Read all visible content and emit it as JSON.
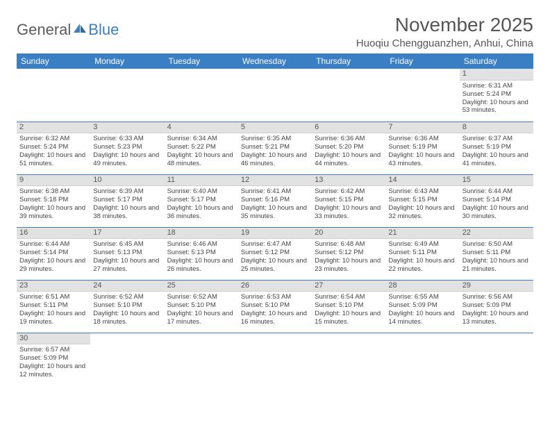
{
  "logo": {
    "general": "General",
    "blue": "Blue"
  },
  "header": {
    "month_title": "November 2025",
    "location": "Huoqiu Chengguanzhen, Anhui, China"
  },
  "colors": {
    "brand_blue": "#3a7fc4",
    "header_text": "#ffffff",
    "daynum_bg": "#e2e2e2",
    "body_text": "#444444",
    "title_text": "#555555"
  },
  "calendar": {
    "day_headers": [
      "Sunday",
      "Monday",
      "Tuesday",
      "Wednesday",
      "Thursday",
      "Friday",
      "Saturday"
    ],
    "weeks": [
      [
        {
          "blank": true
        },
        {
          "blank": true
        },
        {
          "blank": true
        },
        {
          "blank": true
        },
        {
          "blank": true
        },
        {
          "blank": true
        },
        {
          "num": "1",
          "sunrise": "Sunrise: 6:31 AM",
          "sunset": "Sunset: 5:24 PM",
          "daylight": "Daylight: 10 hours and 53 minutes."
        }
      ],
      [
        {
          "num": "2",
          "sunrise": "Sunrise: 6:32 AM",
          "sunset": "Sunset: 5:24 PM",
          "daylight": "Daylight: 10 hours and 51 minutes."
        },
        {
          "num": "3",
          "sunrise": "Sunrise: 6:33 AM",
          "sunset": "Sunset: 5:23 PM",
          "daylight": "Daylight: 10 hours and 49 minutes."
        },
        {
          "num": "4",
          "sunrise": "Sunrise: 6:34 AM",
          "sunset": "Sunset: 5:22 PM",
          "daylight": "Daylight: 10 hours and 48 minutes."
        },
        {
          "num": "5",
          "sunrise": "Sunrise: 6:35 AM",
          "sunset": "Sunset: 5:21 PM",
          "daylight": "Daylight: 10 hours and 46 minutes."
        },
        {
          "num": "6",
          "sunrise": "Sunrise: 6:36 AM",
          "sunset": "Sunset: 5:20 PM",
          "daylight": "Daylight: 10 hours and 44 minutes."
        },
        {
          "num": "7",
          "sunrise": "Sunrise: 6:36 AM",
          "sunset": "Sunset: 5:19 PM",
          "daylight": "Daylight: 10 hours and 43 minutes."
        },
        {
          "num": "8",
          "sunrise": "Sunrise: 6:37 AM",
          "sunset": "Sunset: 5:19 PM",
          "daylight": "Daylight: 10 hours and 41 minutes."
        }
      ],
      [
        {
          "num": "9",
          "sunrise": "Sunrise: 6:38 AM",
          "sunset": "Sunset: 5:18 PM",
          "daylight": "Daylight: 10 hours and 39 minutes."
        },
        {
          "num": "10",
          "sunrise": "Sunrise: 6:39 AM",
          "sunset": "Sunset: 5:17 PM",
          "daylight": "Daylight: 10 hours and 38 minutes."
        },
        {
          "num": "11",
          "sunrise": "Sunrise: 6:40 AM",
          "sunset": "Sunset: 5:17 PM",
          "daylight": "Daylight: 10 hours and 36 minutes."
        },
        {
          "num": "12",
          "sunrise": "Sunrise: 6:41 AM",
          "sunset": "Sunset: 5:16 PM",
          "daylight": "Daylight: 10 hours and 35 minutes."
        },
        {
          "num": "13",
          "sunrise": "Sunrise: 6:42 AM",
          "sunset": "Sunset: 5:15 PM",
          "daylight": "Daylight: 10 hours and 33 minutes."
        },
        {
          "num": "14",
          "sunrise": "Sunrise: 6:43 AM",
          "sunset": "Sunset: 5:15 PM",
          "daylight": "Daylight: 10 hours and 32 minutes."
        },
        {
          "num": "15",
          "sunrise": "Sunrise: 6:44 AM",
          "sunset": "Sunset: 5:14 PM",
          "daylight": "Daylight: 10 hours and 30 minutes."
        }
      ],
      [
        {
          "num": "16",
          "sunrise": "Sunrise: 6:44 AM",
          "sunset": "Sunset: 5:14 PM",
          "daylight": "Daylight: 10 hours and 29 minutes."
        },
        {
          "num": "17",
          "sunrise": "Sunrise: 6:45 AM",
          "sunset": "Sunset: 5:13 PM",
          "daylight": "Daylight: 10 hours and 27 minutes."
        },
        {
          "num": "18",
          "sunrise": "Sunrise: 6:46 AM",
          "sunset": "Sunset: 5:13 PM",
          "daylight": "Daylight: 10 hours and 26 minutes."
        },
        {
          "num": "19",
          "sunrise": "Sunrise: 6:47 AM",
          "sunset": "Sunset: 5:12 PM",
          "daylight": "Daylight: 10 hours and 25 minutes."
        },
        {
          "num": "20",
          "sunrise": "Sunrise: 6:48 AM",
          "sunset": "Sunset: 5:12 PM",
          "daylight": "Daylight: 10 hours and 23 minutes."
        },
        {
          "num": "21",
          "sunrise": "Sunrise: 6:49 AM",
          "sunset": "Sunset: 5:11 PM",
          "daylight": "Daylight: 10 hours and 22 minutes."
        },
        {
          "num": "22",
          "sunrise": "Sunrise: 6:50 AM",
          "sunset": "Sunset: 5:11 PM",
          "daylight": "Daylight: 10 hours and 21 minutes."
        }
      ],
      [
        {
          "num": "23",
          "sunrise": "Sunrise: 6:51 AM",
          "sunset": "Sunset: 5:11 PM",
          "daylight": "Daylight: 10 hours and 19 minutes."
        },
        {
          "num": "24",
          "sunrise": "Sunrise: 6:52 AM",
          "sunset": "Sunset: 5:10 PM",
          "daylight": "Daylight: 10 hours and 18 minutes."
        },
        {
          "num": "25",
          "sunrise": "Sunrise: 6:52 AM",
          "sunset": "Sunset: 5:10 PM",
          "daylight": "Daylight: 10 hours and 17 minutes."
        },
        {
          "num": "26",
          "sunrise": "Sunrise: 6:53 AM",
          "sunset": "Sunset: 5:10 PM",
          "daylight": "Daylight: 10 hours and 16 minutes."
        },
        {
          "num": "27",
          "sunrise": "Sunrise: 6:54 AM",
          "sunset": "Sunset: 5:10 PM",
          "daylight": "Daylight: 10 hours and 15 minutes."
        },
        {
          "num": "28",
          "sunrise": "Sunrise: 6:55 AM",
          "sunset": "Sunset: 5:09 PM",
          "daylight": "Daylight: 10 hours and 14 minutes."
        },
        {
          "num": "29",
          "sunrise": "Sunrise: 6:56 AM",
          "sunset": "Sunset: 5:09 PM",
          "daylight": "Daylight: 10 hours and 13 minutes."
        }
      ],
      [
        {
          "num": "30",
          "sunrise": "Sunrise: 6:57 AM",
          "sunset": "Sunset: 5:09 PM",
          "daylight": "Daylight: 10 hours and 12 minutes."
        },
        {
          "blank": true
        },
        {
          "blank": true
        },
        {
          "blank": true
        },
        {
          "blank": true
        },
        {
          "blank": true
        },
        {
          "blank": true
        }
      ]
    ]
  }
}
